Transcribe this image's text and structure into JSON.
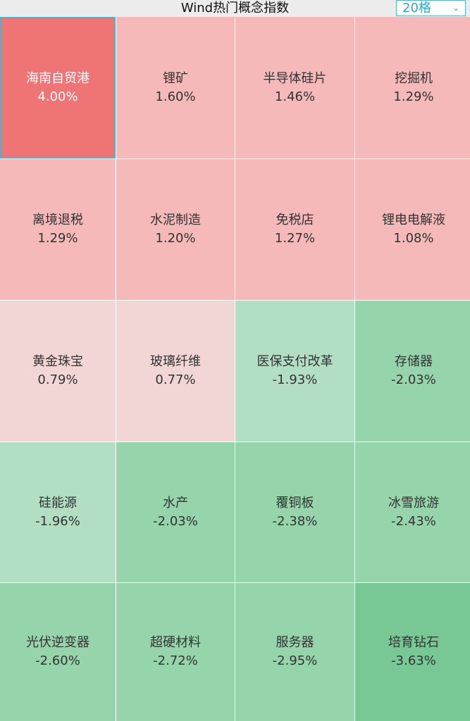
{
  "header": {
    "title": "Wind热门概念指数",
    "grid_select": "20格",
    "chevron_icon": "chevron-down-icon"
  },
  "colors": {
    "up_strong": "#ee7476",
    "up": "#f4b9b8",
    "up_light": "#f2d5d5",
    "down_light": "#b2dec4",
    "down": "#96d4ab",
    "down_strong": "#78c896",
    "selected_border": "#45b6cc"
  },
  "cells": [
    {
      "name": "海南自贸港",
      "change": "4.00%",
      "tone": "up_strong",
      "selected": true
    },
    {
      "name": "锂矿",
      "change": "1.60%",
      "tone": "up"
    },
    {
      "name": "半导体硅片",
      "change": "1.46%",
      "tone": "up"
    },
    {
      "name": "挖掘机",
      "change": "1.29%",
      "tone": "up"
    },
    {
      "name": "离境退税",
      "change": "1.29%",
      "tone": "up"
    },
    {
      "name": "水泥制造",
      "change": "1.20%",
      "tone": "up"
    },
    {
      "name": "免税店",
      "change": "1.27%",
      "tone": "up"
    },
    {
      "name": "锂电电解液",
      "change": "1.08%",
      "tone": "up"
    },
    {
      "name": "黄金珠宝",
      "change": "0.79%",
      "tone": "up_light"
    },
    {
      "name": "玻璃纤维",
      "change": "0.77%",
      "tone": "up_light"
    },
    {
      "name": "医保支付改革",
      "change": "-1.93%",
      "tone": "down_light"
    },
    {
      "name": "存储器",
      "change": "-2.03%",
      "tone": "down"
    },
    {
      "name": "硅能源",
      "change": "-1.96%",
      "tone": "down_light"
    },
    {
      "name": "水产",
      "change": "-2.03%",
      "tone": "down"
    },
    {
      "name": "覆铜板",
      "change": "-2.38%",
      "tone": "down"
    },
    {
      "name": "冰雪旅游",
      "change": "-2.43%",
      "tone": "down"
    },
    {
      "name": "光伏逆变器",
      "change": "-2.60%",
      "tone": "down"
    },
    {
      "name": "超硬材料",
      "change": "-2.72%",
      "tone": "down"
    },
    {
      "name": "服务器",
      "change": "-2.95%",
      "tone": "down"
    },
    {
      "name": "培育钻石",
      "change": "-3.63%",
      "tone": "down_strong"
    }
  ]
}
